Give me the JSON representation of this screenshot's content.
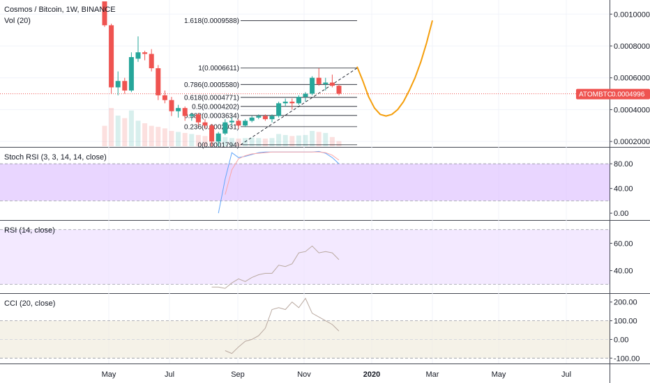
{
  "header": {
    "symbol": "Cosmos / Bitcoin, 1W, BINANCE",
    "vol": "Vol (20)"
  },
  "price_tag": {
    "symbol": "ATOMBTC",
    "value": "0.0004996",
    "color": "#ef5350"
  },
  "colors": {
    "up": "#26a69a",
    "down": "#ef5350",
    "projection": "#f59e0b",
    "stoch_k": "#60a5fa",
    "stoch_d": "#fca5a5",
    "stoch_band": "#e1c8ff",
    "rsi_band": "#efe2ff",
    "cci_band": "#f2ede0",
    "osc_line": "#b9a9a0"
  },
  "x_axis": {
    "labels": [
      "May",
      "Jul",
      "Sep",
      "Nov",
      "2020",
      "Mar",
      "May",
      "Jul"
    ]
  },
  "chart_data": [
    {
      "type": "candlestick",
      "title": "Cosmos / Bitcoin, 1W, BINANCE",
      "price_axis": [
        "0.0010000",
        "0.0008000",
        "0.0006000",
        "0.0004000",
        "0.0002000"
      ],
      "ylim": [
        0.00017,
        0.00108
      ],
      "last_price": 0.0004996,
      "candles": [
        {
          "o": 0.00108,
          "h": 0.00108,
          "l": 0.00092,
          "c": 0.00093
        },
        {
          "o": 0.00093,
          "h": 0.00094,
          "l": 0.0005,
          "c": 0.00054
        },
        {
          "o": 0.00054,
          "h": 0.00064,
          "l": 0.00049,
          "c": 0.00058
        },
        {
          "o": 0.00058,
          "h": 0.0006,
          "l": 0.0005,
          "c": 0.00052
        },
        {
          "o": 0.00052,
          "h": 0.00076,
          "l": 0.00051,
          "c": 0.00073
        },
        {
          "o": 0.00072,
          "h": 0.00086,
          "l": 0.0007,
          "c": 0.00076
        },
        {
          "o": 0.00076,
          "h": 0.00077,
          "l": 0.00071,
          "c": 0.00075
        },
        {
          "o": 0.00075,
          "h": 0.00078,
          "l": 0.00064,
          "c": 0.00066
        },
        {
          "o": 0.00066,
          "h": 0.00068,
          "l": 0.00046,
          "c": 0.00049
        },
        {
          "o": 0.00049,
          "h": 0.00052,
          "l": 0.00044,
          "c": 0.00046
        },
        {
          "o": 0.00046,
          "h": 0.00048,
          "l": 0.00036,
          "c": 0.00039
        },
        {
          "o": 0.00039,
          "h": 0.00043,
          "l": 0.00035,
          "c": 0.00041
        },
        {
          "o": 0.00041,
          "h": 0.00042,
          "l": 0.00033,
          "c": 0.00036
        },
        {
          "o": 0.00036,
          "h": 0.00038,
          "l": 0.00033,
          "c": 0.00037
        },
        {
          "o": 0.00037,
          "h": 0.00038,
          "l": 0.0003,
          "c": 0.00032
        },
        {
          "o": 0.00032,
          "h": 0.00034,
          "l": 0.00028,
          "c": 0.0003
        },
        {
          "o": 0.0003,
          "h": 0.00031,
          "l": 0.00017,
          "c": 0.0002
        },
        {
          "o": 0.0002,
          "h": 0.00026,
          "l": 0.00017,
          "c": 0.00025
        },
        {
          "o": 0.00025,
          "h": 0.00034,
          "l": 0.00024,
          "c": 0.00032
        },
        {
          "o": 0.00032,
          "h": 0.00035,
          "l": 0.0003,
          "c": 0.00033
        },
        {
          "o": 0.00033,
          "h": 0.00034,
          "l": 0.00028,
          "c": 0.0003
        },
        {
          "o": 0.0003,
          "h": 0.00034,
          "l": 0.00029,
          "c": 0.00033
        },
        {
          "o": 0.00033,
          "h": 0.00036,
          "l": 0.00032,
          "c": 0.00035
        },
        {
          "o": 0.00035,
          "h": 0.00037,
          "l": 0.00034,
          "c": 0.00036
        },
        {
          "o": 0.00036,
          "h": 0.00037,
          "l": 0.00033,
          "c": 0.00034
        },
        {
          "o": 0.00034,
          "h": 0.00037,
          "l": 0.00032,
          "c": 0.00036
        },
        {
          "o": 0.00036,
          "h": 0.00045,
          "l": 0.00035,
          "c": 0.00044
        },
        {
          "o": 0.00044,
          "h": 0.00047,
          "l": 0.00042,
          "c": 0.00045
        },
        {
          "o": 0.00045,
          "h": 0.00047,
          "l": 0.0004,
          "c": 0.00044
        },
        {
          "o": 0.00044,
          "h": 0.00049,
          "l": 0.00043,
          "c": 0.00048
        },
        {
          "o": 0.00048,
          "h": 0.00051,
          "l": 0.00045,
          "c": 0.0005
        },
        {
          "o": 0.0005,
          "h": 0.00061,
          "l": 0.00049,
          "c": 0.0006
        },
        {
          "o": 0.0006,
          "h": 0.00066,
          "l": 0.00055,
          "c": 0.00056
        },
        {
          "o": 0.00056,
          "h": 0.0006,
          "l": 0.00052,
          "c": 0.00057
        },
        {
          "o": 0.00057,
          "h": 0.00062,
          "l": 0.00054,
          "c": 0.00055
        },
        {
          "o": 0.00055,
          "h": 0.00056,
          "l": 0.00049,
          "c": 0.0005
        }
      ],
      "volume": [
        40,
        75,
        60,
        55,
        70,
        50,
        45,
        40,
        38,
        35,
        30,
        28,
        26,
        24,
        22,
        20,
        25,
        20,
        18,
        16,
        15,
        16,
        17,
        16,
        15,
        16,
        24,
        22,
        20,
        21,
        22,
        30,
        28,
        26,
        18,
        10
      ],
      "fibonacci": [
        {
          "label": "1.618(0.0009588)",
          "value": 0.0009588
        },
        {
          "label": "1(0.0006611)",
          "value": 0.0006611
        },
        {
          "label": "0.786(0.0005580)",
          "value": 0.000558
        },
        {
          "label": "0.618(0.0004771)",
          "value": 0.0004771
        },
        {
          "label": "0.5(0.0004202)",
          "value": 0.0004202
        },
        {
          "label": "0.382(0.0003634)",
          "value": 0.0003634
        },
        {
          "label": "0.236(0.0002931)",
          "value": 0.0002931
        },
        {
          "label": "0(0.0001794)",
          "value": 0.0001794
        }
      ],
      "projection_curve": [
        0.00067,
        0.00058,
        0.00048,
        0.00041,
        0.00037,
        0.00036,
        0.00037,
        0.0004,
        0.00045,
        0.00052,
        0.0006,
        0.0007,
        0.00082,
        0.00096
      ]
    },
    {
      "type": "line",
      "title": "Stoch RSI (3, 3, 14, 14, close)",
      "axis_labels": [
        "80.00",
        "40.00",
        "0.00"
      ],
      "band": [
        20,
        80
      ],
      "ylim": [
        -10,
        105
      ],
      "series": [
        {
          "name": "K",
          "values": [
            null,
            null,
            null,
            null,
            null,
            null,
            null,
            null,
            null,
            null,
            null,
            null,
            null,
            null,
            null,
            null,
            null,
            0,
            55,
            98,
            90,
            92,
            95,
            98,
            99,
            99,
            99,
            99,
            99,
            99,
            99,
            99,
            100,
            97,
            90,
            80
          ]
        },
        {
          "name": "D",
          "values": [
            null,
            null,
            null,
            null,
            null,
            null,
            null,
            null,
            null,
            null,
            null,
            null,
            null,
            null,
            null,
            null,
            null,
            null,
            30,
            70,
            88,
            93,
            96,
            97,
            98,
            99,
            99,
            99,
            99,
            99,
            99,
            99,
            99,
            98,
            94,
            86
          ]
        }
      ]
    },
    {
      "type": "line",
      "title": "RSI (14, close)",
      "axis_labels": [
        "60.00",
        "40.00"
      ],
      "band": [
        30,
        70
      ],
      "ylim": [
        24,
        76
      ],
      "series": [
        {
          "name": "RSI",
          "values": [
            null,
            null,
            null,
            null,
            null,
            null,
            null,
            null,
            null,
            null,
            null,
            null,
            null,
            null,
            null,
            null,
            28,
            28,
            27,
            31,
            34,
            32,
            35,
            37,
            38,
            38,
            44,
            43,
            45,
            53,
            54,
            58,
            53,
            54,
            53,
            48
          ]
        }
      ]
    },
    {
      "type": "line",
      "title": "CCI (20, close)",
      "axis_labels": [
        "200.00",
        "100.00",
        "0.00",
        "-100.00"
      ],
      "band": [
        -100,
        100
      ],
      "ylim": [
        -125,
        240
      ],
      "series": [
        {
          "name": "CCI",
          "values": [
            null,
            null,
            null,
            null,
            null,
            null,
            null,
            null,
            null,
            null,
            null,
            null,
            null,
            null,
            null,
            null,
            null,
            null,
            -60,
            -75,
            -40,
            -10,
            0,
            20,
            60,
            160,
            170,
            160,
            200,
            170,
            220,
            140,
            120,
            100,
            80,
            45
          ]
        }
      ]
    }
  ]
}
